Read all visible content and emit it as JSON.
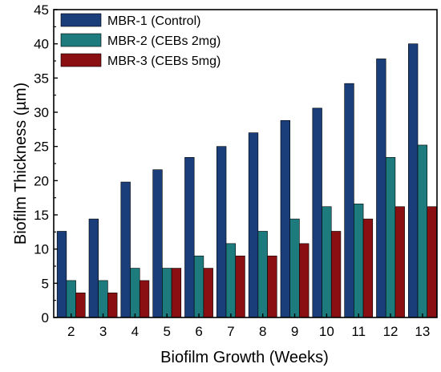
{
  "chart_data": {
    "type": "bar",
    "title": "",
    "xlabel": "Biofilm Growth (Weeks)",
    "ylabel": "Biofilm Thickness (µm)",
    "categories": [
      "2",
      "3",
      "4",
      "5",
      "6",
      "7",
      "8",
      "9",
      "10",
      "11",
      "12",
      "13"
    ],
    "ylim": [
      0,
      45
    ],
    "yticks": [
      0,
      5,
      10,
      15,
      20,
      25,
      30,
      35,
      40,
      45
    ],
    "grid": false,
    "legend_position": "top-left",
    "series": [
      {
        "name": "MBR-1 (Control)",
        "color": "#1a3e7a",
        "values": [
          12.6,
          14.4,
          19.8,
          21.6,
          23.4,
          25.0,
          27.0,
          28.8,
          30.6,
          34.2,
          37.8,
          40.0
        ]
      },
      {
        "name": "MBR-2 (CEBs 2mg)",
        "color": "#1d7b7e",
        "values": [
          5.4,
          5.4,
          7.2,
          7.2,
          9.0,
          10.8,
          12.6,
          14.4,
          16.2,
          16.6,
          23.4,
          25.2
        ]
      },
      {
        "name": "MBR-3 (CEBs 5mg)",
        "color": "#8a0f12",
        "values": [
          3.6,
          3.6,
          5.4,
          7.2,
          7.2,
          9.0,
          9.0,
          10.8,
          12.6,
          14.4,
          16.2,
          16.2
        ]
      }
    ]
  }
}
